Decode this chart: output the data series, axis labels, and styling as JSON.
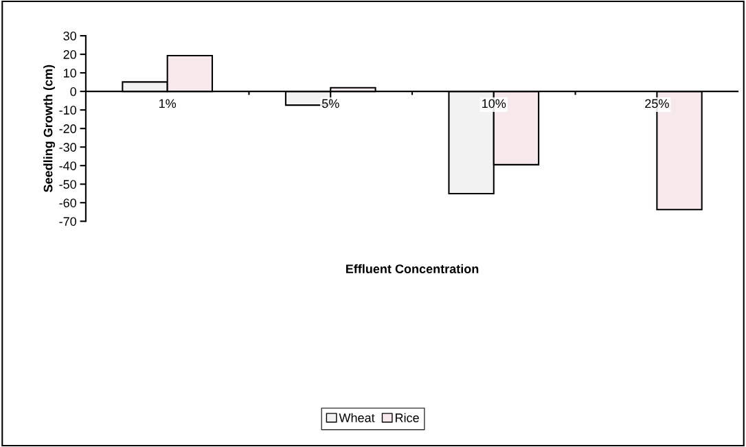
{
  "chart_data": {
    "type": "bar",
    "xlabel": "Effluent Concentration",
    "ylabel": "Seedling Growth (cm)",
    "categories": [
      "1%",
      "5%",
      "10%",
      "25%"
    ],
    "series": [
      {
        "name": "Wheat",
        "color": "#f2f2f2",
        "values": [
          5.1,
          -7.4,
          -55.1,
          null
        ]
      },
      {
        "name": "Rice",
        "color": "#f7e8ec",
        "values": [
          19.3,
          2.0,
          -39.5,
          -63.7
        ]
      }
    ],
    "ylim": [
      -70,
      30
    ],
    "yticks": [
      -70,
      -60,
      -50,
      -40,
      -30,
      -20,
      -10,
      0,
      10,
      20,
      30
    ],
    "grid": false,
    "legend": "bottom"
  }
}
